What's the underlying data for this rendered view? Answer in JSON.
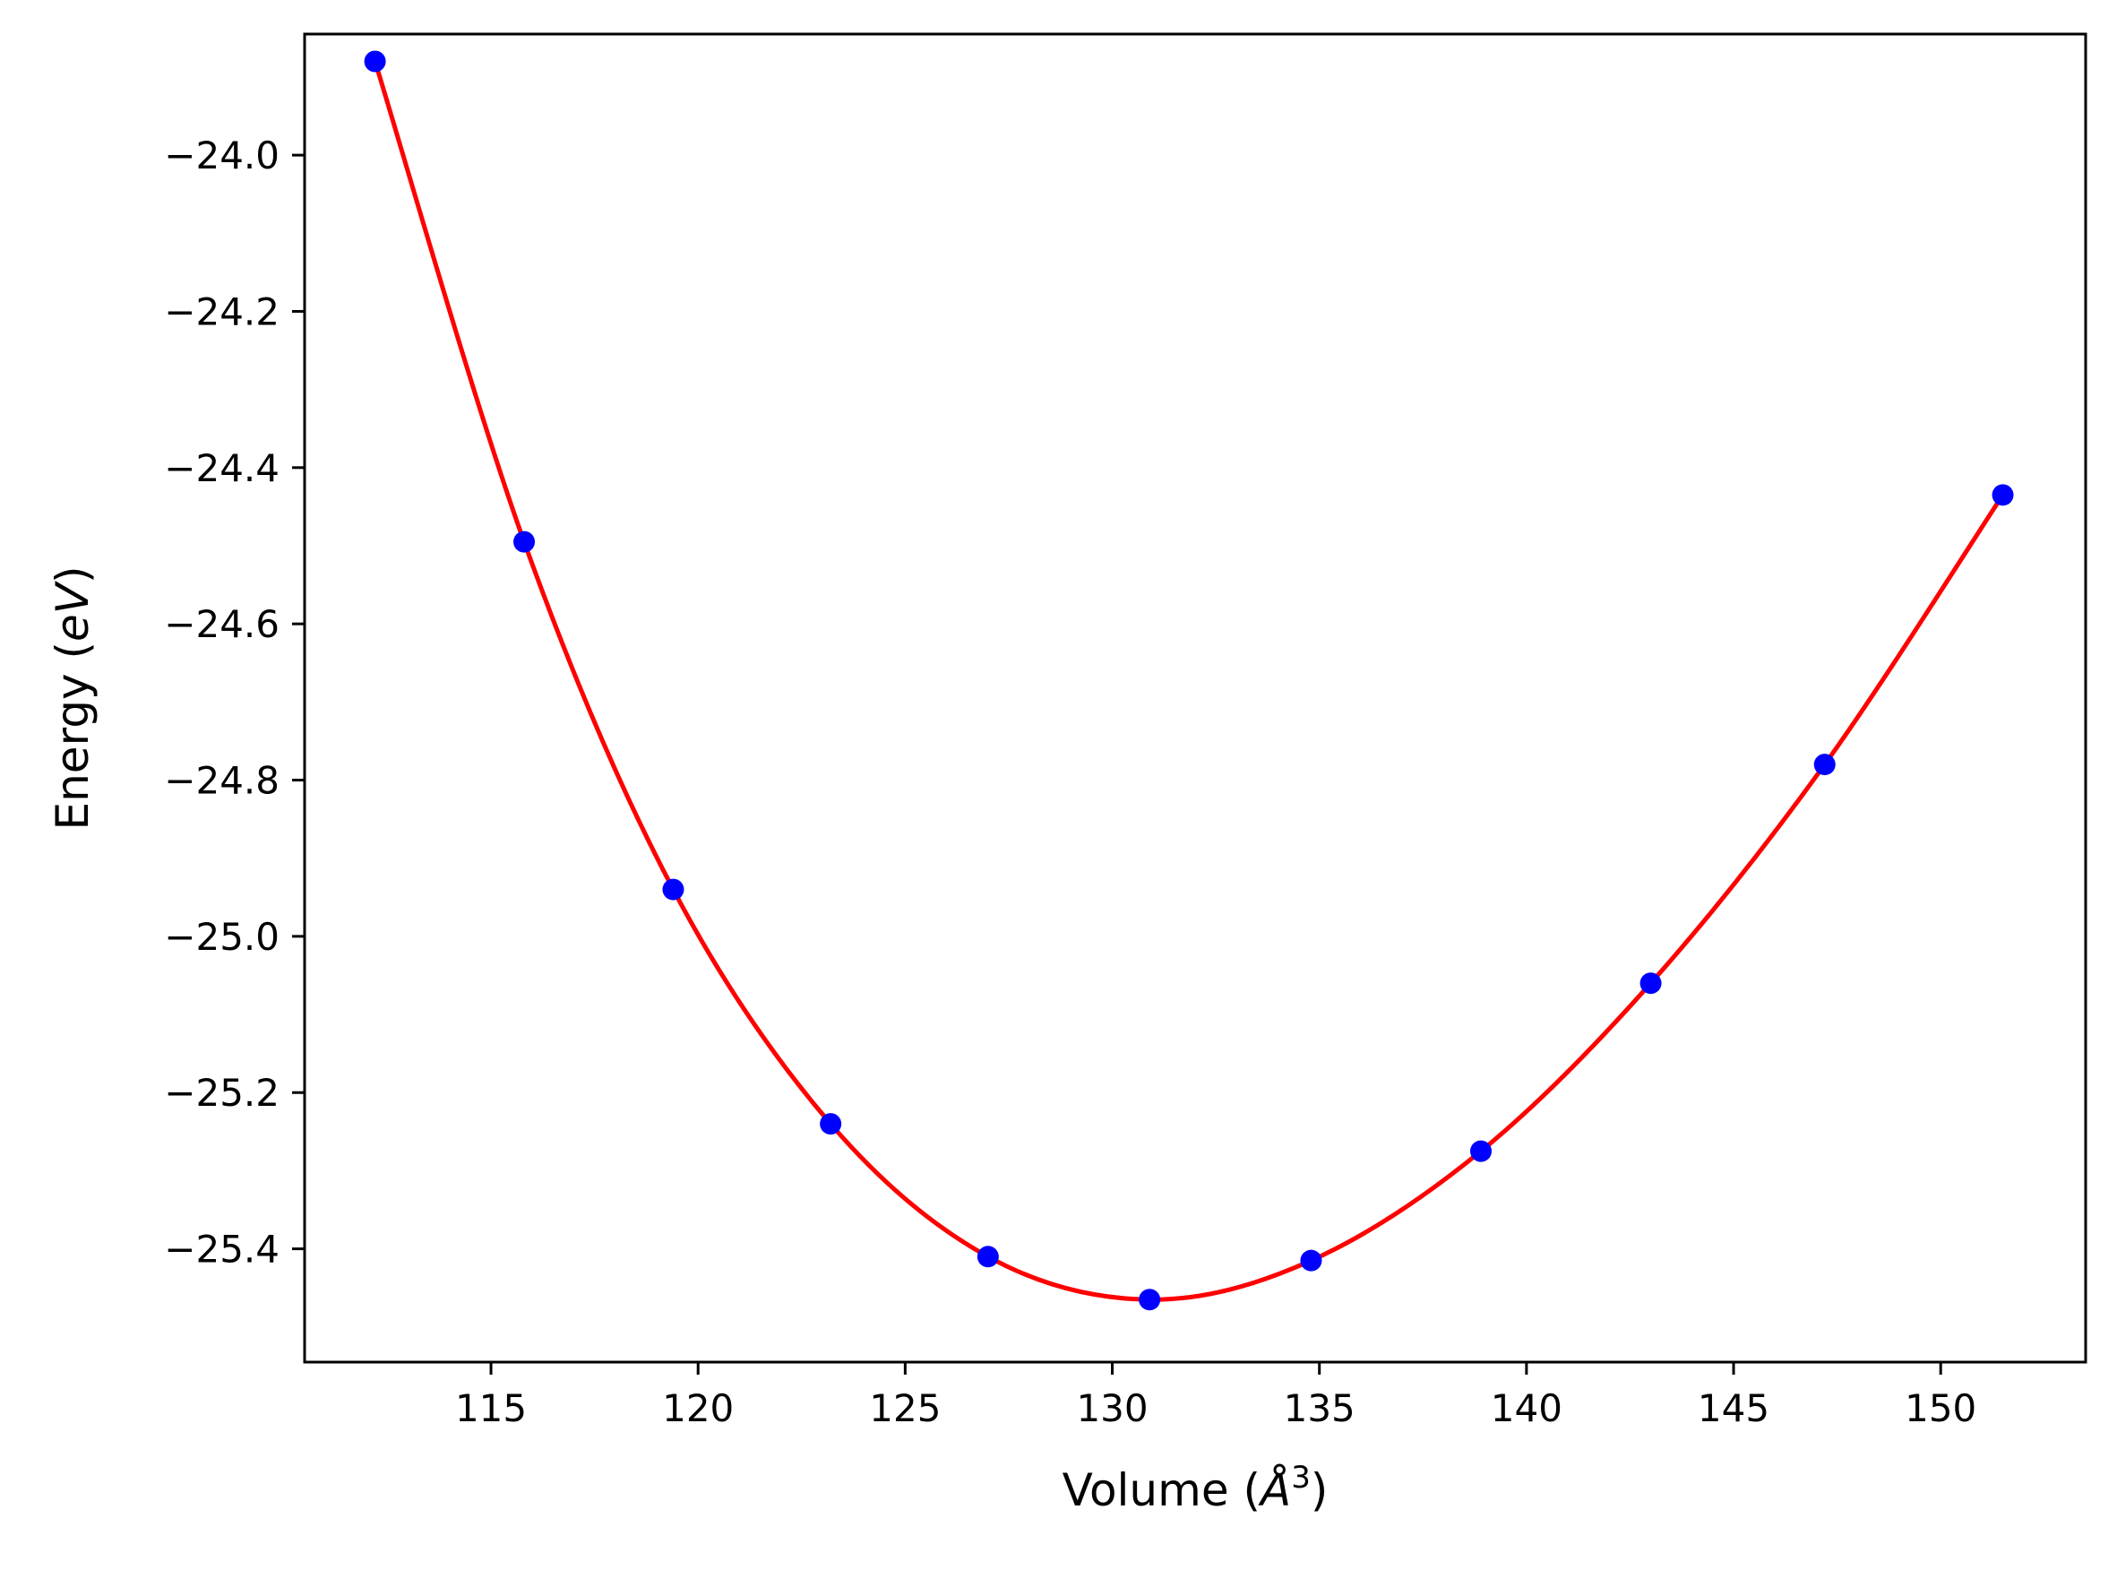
{
  "chart_data": {
    "type": "scatter",
    "xlabel": {
      "prefix": "Volume (",
      "symbol": "Å",
      "superscript": "3",
      "suffix": ")"
    },
    "ylabel": {
      "prefix": "Energy (",
      "unit": "eV",
      "suffix": ")"
    },
    "xlim": [
      110.5,
      153.5
    ],
    "ylim": [
      -25.545,
      -23.845
    ],
    "xticks": [
      115,
      120,
      125,
      130,
      135,
      140,
      145,
      150
    ],
    "xtick_labels": [
      "115",
      "120",
      "125",
      "130",
      "135",
      "140",
      "145",
      "150"
    ],
    "yticks": [
      -24.0,
      -24.2,
      -24.4,
      -24.6,
      -24.8,
      -25.0,
      -25.2,
      -25.4
    ],
    "ytick_labels": [
      "−24.0",
      "−24.2",
      "−24.4",
      "−24.6",
      "−24.8",
      "−25.0",
      "−25.2",
      "−25.4"
    ],
    "grid": false,
    "series": [
      {
        "type": "scatter",
        "color": "#0000ff",
        "x": [
          112.2,
          115.8,
          119.4,
          123.2,
          127.0,
          130.9,
          134.8,
          138.9,
          143.0,
          147.2,
          151.5
        ],
        "y": [
          -23.88,
          -24.495,
          -24.94,
          -25.24,
          -25.41,
          -25.465,
          -25.415,
          -25.275,
          -25.06,
          -24.78,
          -24.435
        ]
      },
      {
        "type": "line",
        "color": "#ff0000",
        "x": [
          112.2,
          115.8,
          119.4,
          123.2,
          127.0,
          130.9,
          134.8,
          138.9,
          143.0,
          147.2,
          151.5
        ],
        "y": [
          -23.88,
          -24.495,
          -24.94,
          -25.24,
          -25.41,
          -25.465,
          -25.415,
          -25.275,
          -25.06,
          -24.78,
          -24.435
        ]
      }
    ]
  }
}
